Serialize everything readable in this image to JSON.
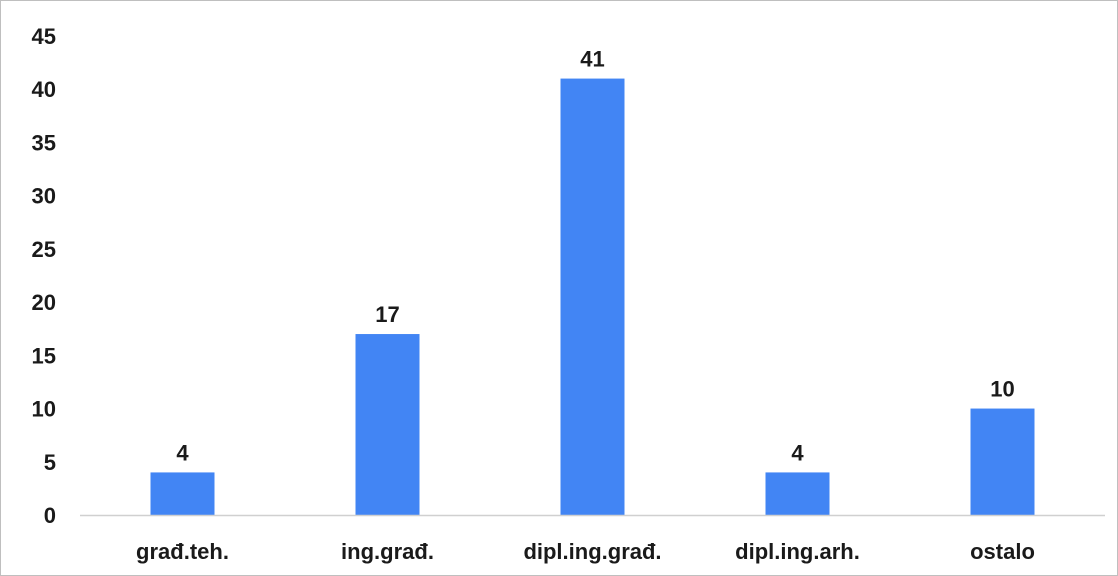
{
  "chart_data": {
    "type": "bar",
    "categories": [
      "građ.teh.",
      "ing.građ.",
      "dipl.ing.građ.",
      "dipl.ing.arh.",
      "ostalo"
    ],
    "values": [
      4,
      17,
      41,
      4,
      10
    ],
    "data_labels": [
      "4",
      "17",
      "41",
      "4",
      "10"
    ],
    "y_ticks": [
      "0",
      "5",
      "10",
      "15",
      "20",
      "25",
      "30",
      "35",
      "40",
      "45"
    ],
    "ylim": [
      0,
      45
    ],
    "ytick_step": 5,
    "grid": false,
    "legend": "none",
    "bar_color": "#4285f4",
    "axis_color": "#d0d0d0",
    "text_color": "#1a1a1a"
  }
}
